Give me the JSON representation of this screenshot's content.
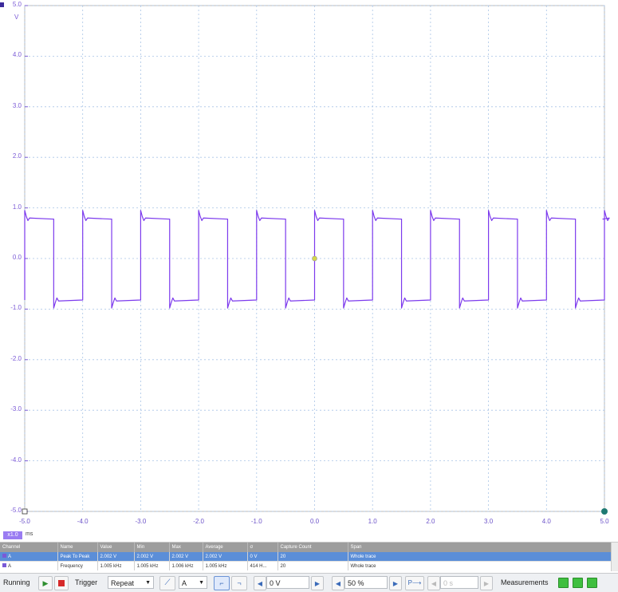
{
  "scope": {
    "y_unit": "V",
    "y_ticks": [
      "5.0",
      "4.0",
      "3.0",
      "2.0",
      "1.0",
      "0.0",
      "-1.0",
      "-2.0",
      "-3.0",
      "-4.0",
      "-5.0"
    ],
    "x_ticks": [
      "-5.0",
      "-4.0",
      "-3.0",
      "-2.0",
      "-1.0",
      "0.0",
      "1.0",
      "2.0",
      "3.0",
      "4.0",
      "5.0"
    ],
    "x_unit_badge": "x1.0",
    "x_unit": "ms",
    "trace_color": "#7c3aed",
    "trigger_marker_color": "#d6d64a",
    "chart_data": {
      "type": "line",
      "title": "",
      "xlabel": "ms",
      "ylabel": "V",
      "xlim": [
        -5.0,
        5.0
      ],
      "ylim": [
        -5.0,
        5.0
      ],
      "grid": true,
      "series": [
        {
          "waveform": "square",
          "high_level": 0.78,
          "low_level": -0.82,
          "period_ms": 1.0,
          "duty_cycle": 0.5,
          "rising_edges_ms": [
            -5.0,
            -4.0,
            -3.0,
            -2.0,
            -1.0,
            0.0,
            1.0,
            2.0,
            3.0,
            4.0
          ],
          "falling_edges_ms": [
            -4.5,
            -3.5,
            -2.5,
            -1.5,
            -0.5,
            0.5,
            1.5,
            2.5,
            3.5,
            4.5
          ],
          "overshoot_high": 0.95,
          "overshoot_low": -0.98
        }
      ]
    }
  },
  "measurements": {
    "headers": [
      "Channel",
      "Name",
      "Value",
      "Min",
      "Max",
      "Average",
      "σ",
      "Capture Count",
      "Span"
    ],
    "rows": [
      [
        "A",
        "Peak To Peak",
        "2.002 V",
        "2.002 V",
        "2.002 V",
        "2.002 V",
        "0 V",
        "20",
        "Whole trace"
      ],
      [
        "A",
        "Frequency",
        "1.005 kHz",
        "1.005 kHz",
        "1.006 kHz",
        "1.005 kHz",
        "414 H...",
        "20",
        "Whole trace"
      ]
    ]
  },
  "toolbar": {
    "running": "Running",
    "trigger": "Trigger",
    "trigger_mode": "Repeat",
    "channel": "A",
    "threshold": "0 V",
    "pre_trigger": "50 %",
    "measurements": "Measurements",
    "delay": "0 s"
  }
}
